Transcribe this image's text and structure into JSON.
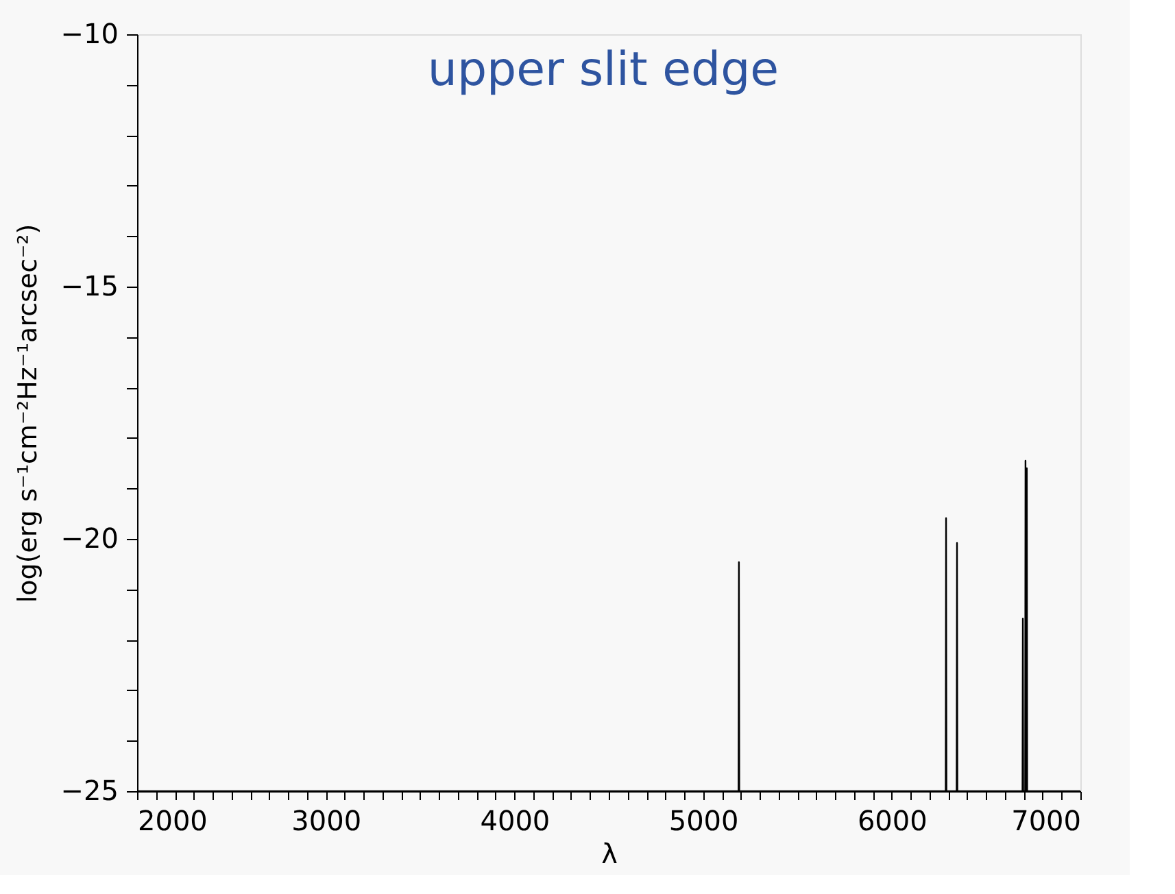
{
  "chart_data": {
    "type": "line",
    "xlabel": "λ",
    "ylabel": "log(erg s⁻¹cm⁻²Hz⁻¹arcsec⁻²)",
    "annotations": [
      "upper slit edge"
    ],
    "xlim": [
      2000,
      7000
    ],
    "ylim": [
      -25,
      -10
    ],
    "xticks": [
      2000,
      {
        "value": 2100,
        "label": null
      },
      {
        "value": 2200,
        "label": null
      },
      {
        "value": 2300,
        "label": null
      },
      {
        "value": 2400,
        "label": null
      },
      {
        "value": 2500,
        "label": null
      },
      {
        "value": 2600,
        "label": null
      },
      {
        "value": 2700,
        "label": null
      },
      {
        "value": 2800,
        "label": null
      },
      {
        "value": 2900,
        "label": null
      },
      3000,
      {
        "value": 3100,
        "label": null
      },
      {
        "value": 3200,
        "label": null
      },
      {
        "value": 3300,
        "label": null
      },
      {
        "value": 3400,
        "label": null
      },
      {
        "value": 3500,
        "label": null
      },
      {
        "value": 3600,
        "label": null
      },
      {
        "value": 3700,
        "label": null
      },
      {
        "value": 3800,
        "label": null
      },
      {
        "value": 3900,
        "label": null
      },
      4000,
      {
        "value": 4100,
        "label": null
      },
      {
        "value": 4200,
        "label": null
      },
      {
        "value": 4300,
        "label": null
      },
      {
        "value": 4400,
        "label": null
      },
      {
        "value": 4500,
        "label": null
      },
      {
        "value": 4600,
        "label": null
      },
      {
        "value": 4700,
        "label": null
      },
      {
        "value": 4800,
        "label": null
      },
      {
        "value": 4900,
        "label": null
      },
      5000,
      {
        "value": 5100,
        "label": null
      },
      {
        "value": 5200,
        "label": null
      },
      {
        "value": 5300,
        "label": null
      },
      {
        "value": 5400,
        "label": null
      },
      {
        "value": 5500,
        "label": null
      },
      {
        "value": 5600,
        "label": null
      },
      {
        "value": 5700,
        "label": null
      },
      {
        "value": 5800,
        "label": null
      },
      {
        "value": 5900,
        "label": null
      },
      6000,
      {
        "value": 6100,
        "label": null
      },
      {
        "value": 6200,
        "label": null
      },
      {
        "value": 6300,
        "label": null
      },
      {
        "value": 6400,
        "label": null
      },
      {
        "value": 6500,
        "label": null
      },
      {
        "value": 6600,
        "label": null
      },
      {
        "value": 6700,
        "label": null
      },
      {
        "value": 6800,
        "label": null
      },
      {
        "value": 6900,
        "label": null
      },
      7000
    ],
    "yticks": [
      -25,
      {
        "value": -24,
        "label": null
      },
      {
        "value": -23,
        "label": null
      },
      {
        "value": -22,
        "label": null
      },
      {
        "value": -21,
        "label": null
      },
      -20,
      {
        "value": -19,
        "label": null
      },
      {
        "value": -18,
        "label": null
      },
      {
        "value": -17,
        "label": null
      },
      {
        "value": -16,
        "label": null
      },
      -15,
      {
        "value": -14,
        "label": null
      },
      {
        "value": -13,
        "label": null
      },
      {
        "value": -12,
        "label": null
      },
      {
        "value": -11,
        "label": null
      },
      -10
    ],
    "grid": false,
    "line_style": "solid",
    "marker": "none",
    "x": [
      2000,
      5188,
      5190,
      5192,
      6286,
      6288,
      6290,
      6344,
      6346,
      6348,
      6693,
      6695,
      6697,
      6707,
      6709,
      6711,
      6714,
      6716,
      6718,
      7000
    ],
    "series": [
      {
        "color": "#000000",
        "values": [
          -25,
          -25,
          -20.46,
          -25,
          -25,
          -19.59,
          -25,
          -25,
          -20.08,
          -25,
          -25,
          -21.58,
          -25,
          -25,
          -18.45,
          -25,
          -25,
          -18.6,
          -25,
          -25
        ]
      }
    ]
  }
}
